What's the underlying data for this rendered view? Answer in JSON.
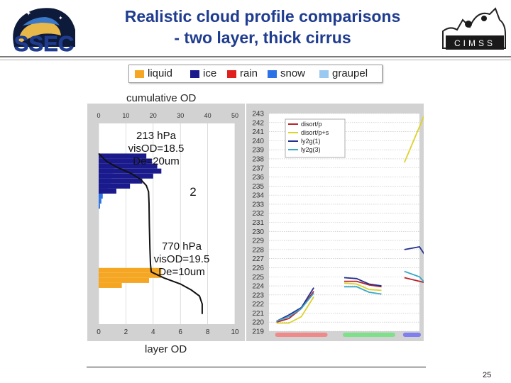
{
  "title": {
    "line1": "Realistic cloud profile comparisons",
    "line2": "- two layer, thick cirrus"
  },
  "logos": {
    "left_text": "SSEC",
    "right_text": "CIMSS"
  },
  "legend": [
    {
      "label": "liquid",
      "color": "#f5a623"
    },
    {
      "label": "ice",
      "color": "#1a1a8c"
    },
    {
      "label": "rain",
      "color": "#e0201c"
    },
    {
      "label": "snow",
      "color": "#2a72e5"
    },
    {
      "label": "graupel",
      "color": "#9ac8f0"
    }
  ],
  "colors": {
    "liquid": "#f5a623",
    "ice": "#1a1a8c",
    "rain": "#e0201c",
    "snow": "#2a72e5",
    "graupel": "#9ac8f0"
  },
  "cumulative_label": "cumulative OD",
  "layer_label": "layer OD",
  "page_number": "25",
  "chart_data": [
    {
      "type": "bar",
      "title": "",
      "top_axis_label": "cumulative OD",
      "bottom_axis_label": "layer OD",
      "top_ticks": [
        "0",
        "10",
        "20",
        "30",
        "40",
        "50"
      ],
      "bottom_ticks": [
        "0",
        "2",
        "4",
        "6",
        "8",
        "10"
      ],
      "top_range": [
        0,
        50
      ],
      "bottom_range": [
        0,
        10
      ],
      "annotations": [
        {
          "lines": [
            "213 hPa",
            "visOD=18.5",
            "De=20um"
          ]
        },
        {
          "lines": [
            "770 hPa",
            "visOD=19.5",
            "De=10um"
          ]
        }
      ],
      "marker_text": "2",
      "ice_bars": [
        {
          "level": 0.15,
          "value": 3.5
        },
        {
          "level": 0.175,
          "value": 3.9
        },
        {
          "level": 0.2,
          "value": 4.3
        },
        {
          "level": 0.225,
          "value": 4.6
        },
        {
          "level": 0.25,
          "value": 4.0
        },
        {
          "level": 0.275,
          "value": 3.2
        },
        {
          "level": 0.3,
          "value": 2.3
        },
        {
          "level": 0.325,
          "value": 1.3
        }
      ],
      "snow_bars": [
        {
          "level": 0.225,
          "value": 1.1
        },
        {
          "level": 0.25,
          "value": 1.0
        },
        {
          "level": 0.275,
          "value": 0.9
        },
        {
          "level": 0.3,
          "value": 0.7
        },
        {
          "level": 0.325,
          "value": 0.5
        },
        {
          "level": 0.35,
          "value": 0.3
        },
        {
          "level": 0.375,
          "value": 0.2
        },
        {
          "level": 0.4,
          "value": 0.1
        }
      ],
      "liquid_bars": [
        {
          "level": 0.72,
          "value": 4.6
        },
        {
          "level": 0.745,
          "value": 4.6
        },
        {
          "level": 0.77,
          "value": 3.7
        },
        {
          "level": 0.795,
          "value": 1.7
        }
      ],
      "cumulative_curve": [
        [
          0,
          0.15
        ],
        [
          3,
          0.19
        ],
        [
          7,
          0.22
        ],
        [
          12,
          0.25
        ],
        [
          15.5,
          0.28
        ],
        [
          17.5,
          0.31
        ],
        [
          18.3,
          0.34
        ],
        [
          18.5,
          0.4
        ],
        [
          18.6,
          0.5
        ],
        [
          18.8,
          0.62
        ],
        [
          19.0,
          0.7
        ],
        [
          19.3,
          0.74
        ],
        [
          24,
          0.77
        ],
        [
          30,
          0.8
        ],
        [
          34,
          0.83
        ],
        [
          37,
          0.86
        ],
        [
          38,
          0.9
        ],
        [
          38,
          0.95
        ]
      ]
    },
    {
      "type": "line",
      "title": "",
      "y_ticks": [
        "243",
        "242",
        "241",
        "240",
        "239",
        "238",
        "237",
        "236",
        "235",
        "234",
        "233",
        "232",
        "231",
        "230",
        "229",
        "228",
        "227",
        "226",
        "225",
        "224",
        "223",
        "222",
        "221",
        "220",
        "219"
      ],
      "y_range": [
        219,
        243
      ],
      "series": [
        {
          "name": "disort/p",
          "color": "#b8242a"
        },
        {
          "name": "disort/p+s",
          "color": "#ddd22a"
        },
        {
          "name": "ly2g(1)",
          "color": "#25318f"
        },
        {
          "name": "ly2g(3)",
          "color": "#3aa8c8"
        }
      ],
      "groups": [
        {
          "x_start": 0.05,
          "x_end": 0.38,
          "bar_color": "#f08a8a",
          "lines": [
            {
              "series": 0,
              "values": [
                220.0,
                220.4,
                221.5,
                223.4
              ]
            },
            {
              "series": 1,
              "values": [
                219.9,
                219.9,
                220.6,
                222.8
              ]
            },
            {
              "series": 2,
              "values": [
                220.1,
                220.8,
                221.6,
                223.8
              ]
            },
            {
              "series": 3,
              "values": [
                220.1,
                220.6,
                221.5,
                223.2
              ]
            }
          ]
        },
        {
          "x_start": 0.5,
          "x_end": 0.83,
          "bar_color": "#7fe08a",
          "lines": [
            {
              "series": 0,
              "values": [
                224.5,
                224.5,
                224.1,
                223.9
              ]
            },
            {
              "series": 1,
              "values": [
                224.3,
                224.2,
                223.6,
                223.5
              ]
            },
            {
              "series": 2,
              "values": [
                224.9,
                224.8,
                224.2,
                224.0
              ]
            },
            {
              "series": 3,
              "values": [
                223.9,
                223.9,
                223.3,
                223.1
              ]
            }
          ]
        },
        {
          "x_start": 0.9,
          "x_end": 1.2,
          "bar_color": "#7f7ff0",
          "lines": [
            {
              "series": 0,
              "values": [
                224.9,
                224.3
              ]
            },
            {
              "series": 1,
              "values": [
                237.6,
                243.5
              ]
            },
            {
              "series": 2,
              "values": [
                228.0,
                228.3,
                225.8
              ]
            },
            {
              "series": 3,
              "values": [
                225.6,
                225.0,
                223.2
              ]
            }
          ]
        }
      ]
    }
  ]
}
